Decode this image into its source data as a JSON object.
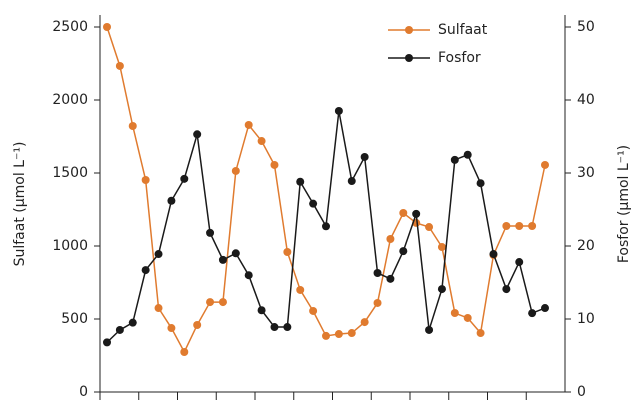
{
  "chart_data": {
    "type": "line",
    "categories": [
      null,
      null,
      null,
      null,
      null,
      null,
      null,
      null,
      null,
      null,
      null,
      null,
      null,
      null,
      null,
      null,
      null,
      null,
      null,
      null,
      null,
      null,
      null,
      null,
      null,
      null,
      null,
      null,
      null,
      null,
      null,
      null,
      null,
      null,
      null
    ],
    "y_label": "Sulfaat (µmol L⁻¹)",
    "y2_label": "Fosfor (µmol L⁻¹)",
    "ylim": [
      0,
      2500
    ],
    "yticks": [
      0,
      500,
      1000,
      1500,
      2000,
      2500
    ],
    "y2lim": [
      0,
      50
    ],
    "y2ticks": [
      0,
      10,
      20,
      30,
      40,
      50
    ],
    "legend": "upper right",
    "series": [
      {
        "name": "Sulfaat",
        "color": "#e07b2f",
        "values": [
          2500,
          2233,
          1822,
          1452,
          575,
          438,
          274,
          459,
          616,
          616,
          1514,
          1829,
          1719,
          1555,
          959,
          699,
          555,
          384,
          397,
          404,
          479,
          610,
          1048,
          1226,
          1158,
          1130,
          993,
          541,
          507,
          404,
          938,
          1137,
          1137,
          1137,
          1555
        ]
      },
      {
        "name": "Fosfor",
        "color": "#1a1a1a",
        "axis": "y2",
        "values": [
          6.8,
          8.5,
          9.5,
          16.7,
          18.9,
          26.2,
          29.2,
          35.3,
          21.8,
          18.1,
          19.0,
          16.0,
          11.2,
          8.9,
          8.9,
          28.8,
          25.8,
          22.7,
          38.5,
          28.9,
          32.2,
          16.3,
          15.5,
          19.3,
          24.4,
          8.5,
          14.1,
          31.8,
          32.5,
          28.6,
          18.9,
          14.1,
          17.8,
          10.8,
          11.5
        ]
      }
    ]
  }
}
